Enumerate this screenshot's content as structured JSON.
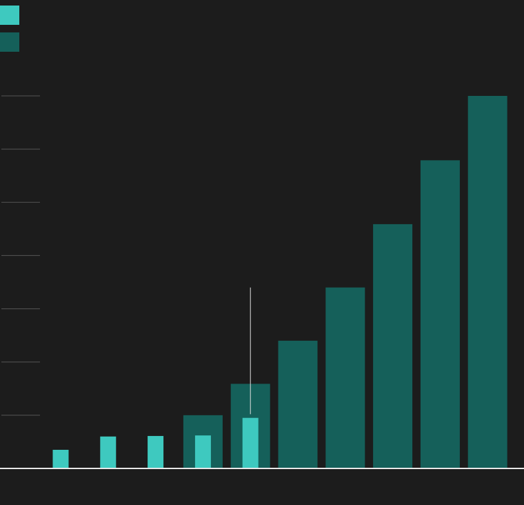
{
  "chart_data": {
    "type": "bar",
    "categories": [
      null,
      null,
      null,
      null,
      null,
      null,
      null,
      null,
      null,
      null
    ],
    "series": [
      {
        "color": "#3ec9bf",
        "values": [
          0.35,
          0.6,
          0.61,
          0.62,
          0.95,
          null,
          null,
          null,
          null,
          null
        ]
      },
      {
        "color": "#15605a",
        "values": [
          null,
          null,
          null,
          1.0,
          1.59,
          2.4,
          3.4,
          4.59,
          5.79,
          7.0
        ],
        "range_low": [
          null,
          null,
          null,
          null,
          1.02,
          null,
          null,
          null,
          null,
          null
        ],
        "range_high": [
          null,
          null,
          null,
          null,
          3.4,
          null,
          null,
          null,
          null,
          null
        ]
      }
    ],
    "ylim": [
      0,
      7
    ],
    "yticks": [
      1,
      2,
      3,
      4,
      5,
      6,
      7
    ],
    "grid": true,
    "legend": "top-left"
  }
}
